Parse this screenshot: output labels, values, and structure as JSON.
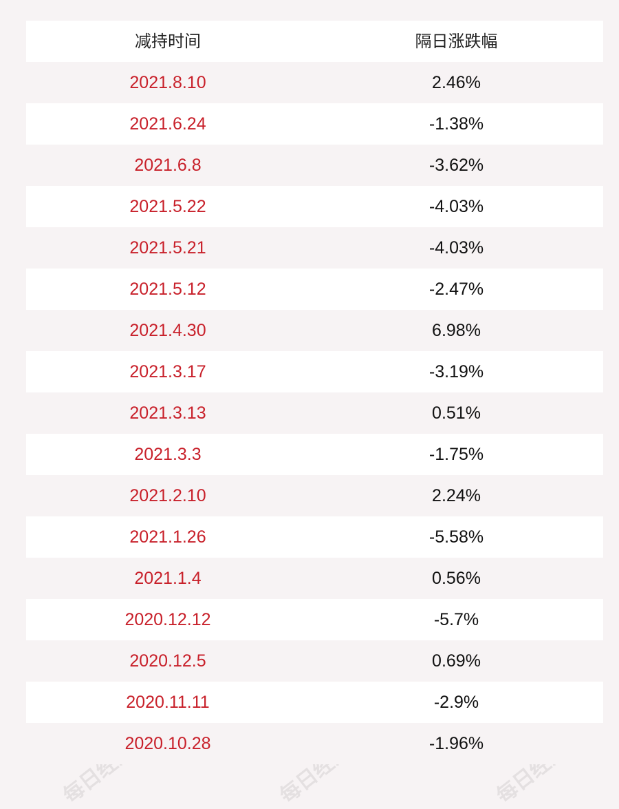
{
  "table": {
    "headers": [
      "减持时间",
      "隔日涨跌幅"
    ],
    "rows": [
      {
        "date": "2021.8.10",
        "change": "2.46%"
      },
      {
        "date": "2021.6.24",
        "change": "-1.38%"
      },
      {
        "date": "2021.6.8",
        "change": "-3.62%"
      },
      {
        "date": "2021.5.22",
        "change": "-4.03%"
      },
      {
        "date": "2021.5.21",
        "change": "-4.03%"
      },
      {
        "date": "2021.5.12",
        "change": "-2.47%"
      },
      {
        "date": "2021.4.30",
        "change": "6.98%"
      },
      {
        "date": "2021.3.17",
        "change": "-3.19%"
      },
      {
        "date": "2021.3.13",
        "change": "0.51%"
      },
      {
        "date": "2021.3.3",
        "change": "-1.75%"
      },
      {
        "date": "2021.2.10",
        "change": "2.24%"
      },
      {
        "date": "2021.1.26",
        "change": "-5.58%"
      },
      {
        "date": "2021.1.4",
        "change": "0.56%"
      },
      {
        "date": "2020.12.12",
        "change": "-5.7%"
      },
      {
        "date": "2020.12.5",
        "change": "0.69%"
      },
      {
        "date": "2020.11.11",
        "change": "-2.9%"
      },
      {
        "date": "2020.10.28",
        "change": "-1.96%"
      }
    ]
  },
  "watermark": {
    "text": "每日经济新闻"
  },
  "colors": {
    "date_text": "#c8202a",
    "value_text": "#111111",
    "background": "#f7f3f4",
    "row_light": "#ffffff"
  }
}
